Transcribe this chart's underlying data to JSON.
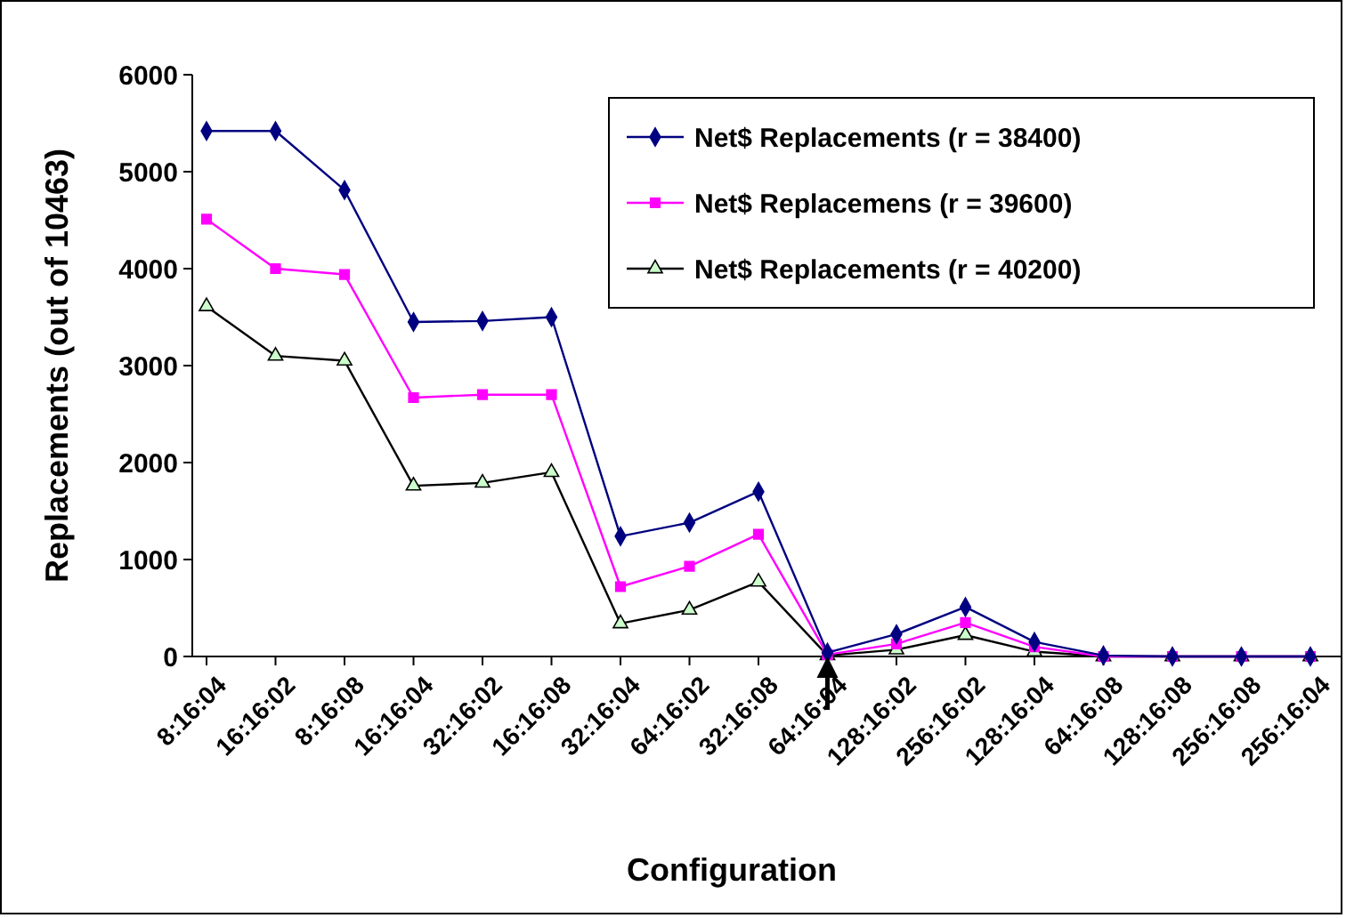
{
  "chart_data": {
    "type": "line",
    "xlabel": "Configuration",
    "ylabel": "Replacements (out of 10463)",
    "categories": [
      "8:16:04",
      "16:16:02",
      "8:16:08",
      "16:16:04",
      "32:16:02",
      "16:16:08",
      "32:16:04",
      "64:16:02",
      "32:16:08",
      "64:16:04",
      "128:16:02",
      "256:16:02",
      "128:16:04",
      "64:16:08",
      "128:16:08",
      "256:16:08",
      "256:16:04"
    ],
    "series": [
      {
        "name": "Net$ Replacements (r = 38400)",
        "color": "#000080",
        "marker": "diamond",
        "values": [
          5420,
          5420,
          4810,
          3450,
          3460,
          3500,
          1240,
          1380,
          1700,
          40,
          230,
          510,
          150,
          10,
          0,
          0,
          0
        ]
      },
      {
        "name": "Net$ Replacemens (r = 39600)",
        "color": "#ff00ff",
        "marker": "square",
        "values": [
          4510,
          4000,
          3940,
          2670,
          2700,
          2700,
          720,
          930,
          1260,
          20,
          130,
          350,
          100,
          0,
          0,
          0,
          0
        ]
      },
      {
        "name": "Net$ Replacements (r = 40200)",
        "color": "#000000",
        "marker": "triangle",
        "values": [
          3610,
          3100,
          3050,
          1760,
          1790,
          1900,
          340,
          480,
          770,
          10,
          70,
          220,
          50,
          0,
          0,
          0,
          0
        ]
      }
    ],
    "ylim": [
      0,
      6000
    ],
    "yticks": [
      0,
      1000,
      2000,
      3000,
      4000,
      5000,
      6000
    ],
    "grid": false,
    "legend": "top right"
  }
}
